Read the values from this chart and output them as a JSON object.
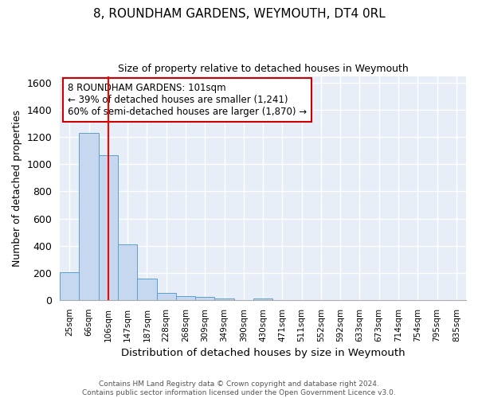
{
  "title": "8, ROUNDHAM GARDENS, WEYMOUTH, DT4 0RL",
  "subtitle": "Size of property relative to detached houses in Weymouth",
  "xlabel": "Distribution of detached houses by size in Weymouth",
  "ylabel": "Number of detached properties",
  "bar_color": "#c5d8f0",
  "bar_edge_color": "#5a9fd4",
  "background_color": "#e8eef8",
  "fig_background": "#ffffff",
  "grid_color": "#ffffff",
  "categories": [
    "25sqm",
    "66sqm",
    "106sqm",
    "147sqm",
    "187sqm",
    "228sqm",
    "268sqm",
    "309sqm",
    "349sqm",
    "390sqm",
    "430sqm",
    "471sqm",
    "511sqm",
    "552sqm",
    "592sqm",
    "633sqm",
    "673sqm",
    "714sqm",
    "754sqm",
    "795sqm",
    "835sqm"
  ],
  "values": [
    205,
    1230,
    1065,
    410,
    160,
    50,
    27,
    20,
    12,
    0,
    13,
    0,
    0,
    0,
    0,
    0,
    0,
    0,
    0,
    0,
    0
  ],
  "ylim": [
    0,
    1650
  ],
  "yticks": [
    0,
    200,
    400,
    600,
    800,
    1000,
    1200,
    1400,
    1600
  ],
  "red_line_x": 2.5,
  "annotation_text": "8 ROUNDHAM GARDENS: 101sqm\n← 39% of detached houses are smaller (1,241)\n60% of semi-detached houses are larger (1,870) →",
  "annotation_box_color": "#ffffff",
  "annotation_box_edge": "#cc0000",
  "footer_line1": "Contains HM Land Registry data © Crown copyright and database right 2024.",
  "footer_line2": "Contains public sector information licensed under the Open Government Licence v3.0."
}
